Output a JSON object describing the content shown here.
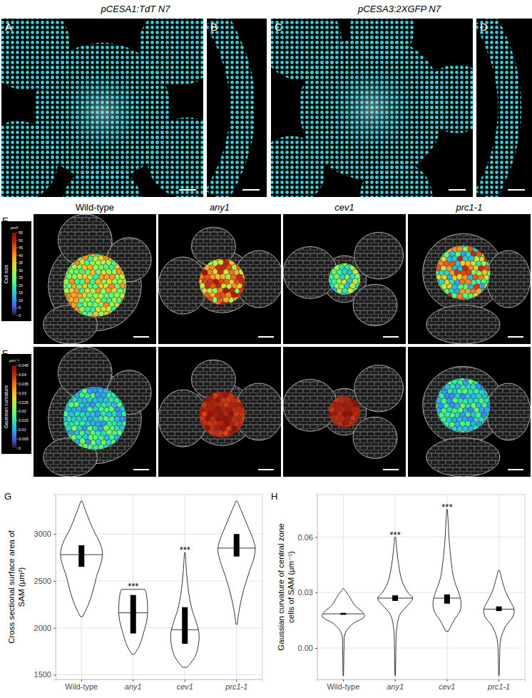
{
  "figure": {
    "titles": [
      "pCESA1:TdT N7",
      "pCESA3:2XGFP N7"
    ],
    "panel_labels": [
      "A",
      "B",
      "C",
      "D",
      "E",
      "F",
      "G",
      "H"
    ],
    "genotypes": [
      "Wild-type",
      "any1",
      "cev1",
      "prc1-1"
    ],
    "colorbars": [
      {
        "title": "Cell size",
        "unit": "µm²",
        "range": [
          0,
          55
        ],
        "ticks": [
          0,
          5,
          10,
          15,
          20,
          25,
          30,
          35,
          40,
          45,
          50,
          55
        ]
      },
      {
        "title": "Gaussian curvature",
        "unit": "µm⁻¹",
        "range": [
          0,
          0.045
        ],
        "ticks": [
          0,
          0.005,
          0.01,
          0.015,
          0.02,
          0.025,
          0.03,
          0.035,
          0.04,
          0.045
        ]
      }
    ]
  },
  "chart_data": [
    {
      "type": "violin",
      "categories": [
        "Wild-type",
        "any1",
        "cev1",
        "prc1-1"
      ],
      "y_label": [
        "Cross sectional surface area of",
        "SAM (µm²)"
      ],
      "ylim": [
        1450,
        3420
      ],
      "yticks": [
        1500,
        2000,
        2500,
        3000
      ],
      "grid": true,
      "violins": [
        {
          "y": [
            2120,
            2250,
            2400,
            2550,
            2700,
            2800,
            2900,
            3050,
            3200,
            3350
          ],
          "width": [
            0.05,
            0.3,
            0.5,
            0.65,
            0.85,
            0.9,
            0.8,
            0.5,
            0.25,
            0.03
          ],
          "median": 2780,
          "bar": [
            2650,
            2880
          ]
        },
        {
          "y": [
            1720,
            1800,
            1950,
            2100,
            2200,
            2300,
            2380,
            2410
          ],
          "width": [
            0.05,
            0.25,
            0.45,
            0.6,
            0.62,
            0.6,
            0.55,
            0.5
          ],
          "median": 2160,
          "bar": [
            1940,
            2350
          ]
        },
        {
          "y": [
            1580,
            1700,
            1850,
            1950,
            2050,
            2200,
            2400,
            2600,
            2800
          ],
          "width": [
            0.1,
            0.45,
            0.6,
            0.6,
            0.5,
            0.3,
            0.15,
            0.07,
            0.02
          ],
          "median": 1980,
          "bar": [
            1830,
            2220
          ]
        },
        {
          "y": [
            2040,
            2200,
            2400,
            2600,
            2750,
            2850,
            2950,
            3100,
            3250,
            3350
          ],
          "width": [
            0.03,
            0.12,
            0.3,
            0.55,
            0.75,
            0.8,
            0.7,
            0.45,
            0.2,
            0.03
          ],
          "median": 2850,
          "bar": [
            2760,
            3000
          ]
        }
      ],
      "annotations": [
        {
          "text": "***",
          "category": 1,
          "y": 2470
        },
        {
          "text": "***",
          "category": 2,
          "y": 2860
        }
      ]
    },
    {
      "type": "violin",
      "categories": [
        "Wild-type",
        "any1",
        "cev1",
        "prc1-1"
      ],
      "y_label": [
        "Gaussian curvature of central zone",
        "cells of SAM (µm⁻¹)"
      ],
      "ylim": [
        -0.017,
        0.083
      ],
      "yticks": [
        {
          "value": 0,
          "label": "0.00"
        },
        0.03,
        0.06
      ],
      "grid": true,
      "violins": [
        {
          "y": [
            -0.015,
            -0.008,
            0.0,
            0.008,
            0.013,
            0.017,
            0.019,
            0.023,
            0.028,
            0.032
          ],
          "width": [
            0.01,
            0.02,
            0.03,
            0.08,
            0.4,
            0.9,
            0.85,
            0.5,
            0.25,
            0.03
          ],
          "median": 0.0185,
          "bar": [
            0.018,
            0.019
          ]
        },
        {
          "y": [
            -0.015,
            -0.01,
            0.0,
            0.01,
            0.018,
            0.024,
            0.027,
            0.03,
            0.036,
            0.045,
            0.052,
            0.06
          ],
          "width": [
            0.01,
            0.02,
            0.03,
            0.06,
            0.2,
            0.6,
            0.75,
            0.55,
            0.3,
            0.15,
            0.08,
            0.02
          ],
          "median": 0.027,
          "bar": [
            0.0255,
            0.0285
          ]
        },
        {
          "y": [
            0.009,
            0.015,
            0.02,
            0.025,
            0.03,
            0.035,
            0.04,
            0.05,
            0.06,
            0.07,
            0.075
          ],
          "width": [
            0.05,
            0.3,
            0.55,
            0.6,
            0.5,
            0.35,
            0.25,
            0.15,
            0.08,
            0.04,
            0.01
          ],
          "median": 0.027,
          "bar": [
            0.024,
            0.029
          ]
        },
        {
          "y": [
            -0.015,
            -0.005,
            0.005,
            0.012,
            0.017,
            0.021,
            0.025,
            0.03,
            0.036,
            0.042
          ],
          "width": [
            0.01,
            0.03,
            0.08,
            0.3,
            0.6,
            0.65,
            0.5,
            0.3,
            0.15,
            0.03
          ],
          "median": 0.021,
          "bar": [
            0.02,
            0.0225
          ]
        }
      ],
      "annotations": [
        {
          "text": "***",
          "category": 1,
          "y": 0.0625
        },
        {
          "text": "***",
          "category": 2,
          "y": 0.0775
        }
      ]
    }
  ]
}
